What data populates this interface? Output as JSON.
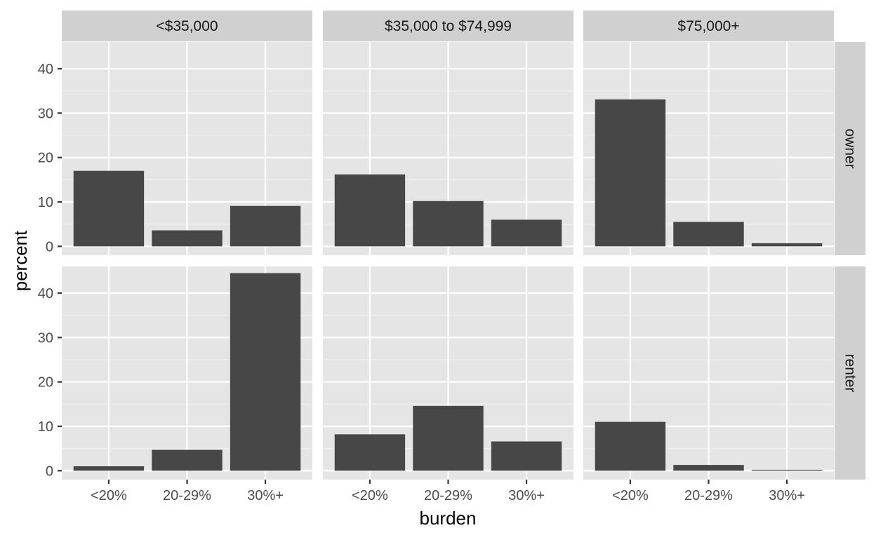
{
  "chart_data": {
    "type": "bar",
    "xlabel": "burden",
    "ylabel": "percent",
    "categories": [
      "<20%",
      "20-29%",
      "30%+"
    ],
    "ylim": [
      -2,
      46
    ],
    "yticks": [
      0,
      10,
      20,
      30,
      40
    ],
    "grid": true,
    "facet_columns": [
      "<$35,000",
      "$35,000 to $74,999",
      "$75,000+"
    ],
    "facet_rows": [
      "owner",
      "renter"
    ],
    "panels": [
      {
        "column": "<$35,000",
        "row": "owner",
        "values": [
          17.0,
          3.6,
          9.1
        ]
      },
      {
        "column": "$35,000 to $74,999",
        "row": "owner",
        "values": [
          16.2,
          10.2,
          6.0
        ]
      },
      {
        "column": "$75,000+",
        "row": "owner",
        "values": [
          33.1,
          5.5,
          0.7
        ]
      },
      {
        "column": "<$35,000",
        "row": "renter",
        "values": [
          1.0,
          4.7,
          44.5
        ]
      },
      {
        "column": "$35,000 to $74,999",
        "row": "renter",
        "values": [
          8.2,
          14.6,
          6.6
        ]
      },
      {
        "column": "$75,000+",
        "row": "renter",
        "values": [
          11.0,
          1.3,
          0.2
        ]
      }
    ]
  }
}
